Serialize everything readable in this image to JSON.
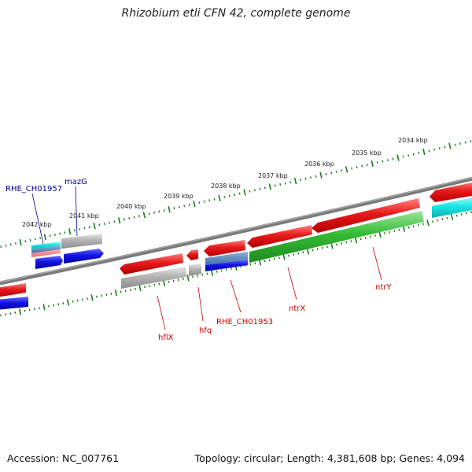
{
  "title": "Rhizobium etli CFN 42, complete genome",
  "footer": {
    "accession": "Accession: NC_007761",
    "summary": "Topology: circular; Length: 4,381,608 bp; Genes: 4,094"
  },
  "scale_labels": [
    "2034 kbp",
    "2035 kbp",
    "2036 kbp",
    "2037 kbp",
    "2038 kbp",
    "2039 kbp",
    "2040 kbp",
    "2041 kbp",
    "2042 kbp"
  ],
  "genes_above": [
    {
      "name": "RHE_CH01957",
      "color": "#000099"
    },
    {
      "name": "mazG",
      "color": "#000099"
    }
  ],
  "genes_below": [
    {
      "name": "hflX",
      "color": "#cc0000"
    },
    {
      "name": "hfq",
      "color": "#cc0000"
    },
    {
      "name": "RHE_CH01953",
      "color": "#cc0000"
    },
    {
      "name": "ntrX",
      "color": "#cc0000"
    },
    {
      "name": "ntrY",
      "color": "#cc0000"
    }
  ],
  "colors": {
    "backbone": "#808080",
    "tick": "#1a7a1a",
    "forward_gene": "#e61919",
    "reverse_gene": "#1414e6",
    "other_gene": "#b3b3b3",
    "green_gene": "#33bb33",
    "cyan_gene": "#19e6e6"
  }
}
